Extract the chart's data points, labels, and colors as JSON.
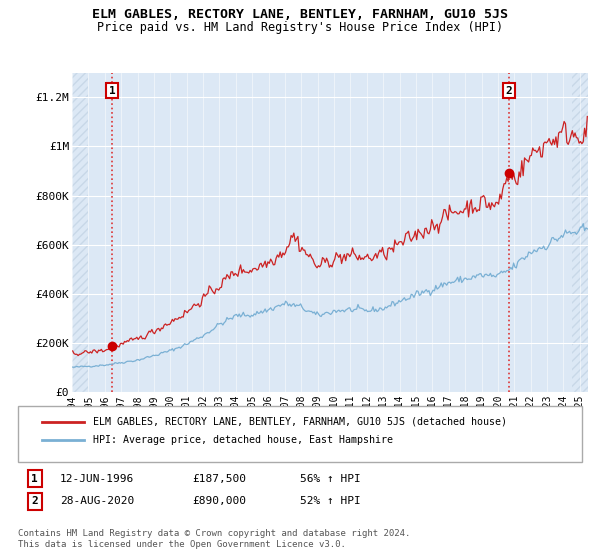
{
  "title": "ELM GABLES, RECTORY LANE, BENTLEY, FARNHAM, GU10 5JS",
  "subtitle": "Price paid vs. HM Land Registry's House Price Index (HPI)",
  "ylim": [
    0,
    1300000
  ],
  "yticks": [
    0,
    200000,
    400000,
    600000,
    800000,
    1000000,
    1200000
  ],
  "ytick_labels": [
    "£0",
    "£200K",
    "£400K",
    "£600K",
    "£800K",
    "£1M",
    "£1.2M"
  ],
  "background_color": "#ffffff",
  "plot_bg_color": "#dce8f5",
  "grid_color": "#ffffff",
  "hatch_color": "#c8d8e8",
  "sale1_date": 1996.46,
  "sale1_price": 187500,
  "sale1_label": "1",
  "sale2_date": 2020.66,
  "sale2_price": 890000,
  "sale2_label": "2",
  "vline_color": "#dd3333",
  "marker_color": "#cc0000",
  "hpi_line_color": "#7ab0d4",
  "price_line_color": "#cc2222",
  "legend_label1": "ELM GABLES, RECTORY LANE, BENTLEY, FARNHAM, GU10 5JS (detached house)",
  "legend_label2": "HPI: Average price, detached house, East Hampshire",
  "ann1_box": "1",
  "ann1_date": "12-JUN-1996",
  "ann1_price": "£187,500",
  "ann1_hpi": "56% ↑ HPI",
  "ann2_box": "2",
  "ann2_date": "28-AUG-2020",
  "ann2_price": "£890,000",
  "ann2_hpi": "52% ↑ HPI",
  "footer": "Contains HM Land Registry data © Crown copyright and database right 2024.\nThis data is licensed under the Open Government Licence v3.0.",
  "xmin": 1994.0,
  "xmax": 2025.5,
  "xticks": [
    1994,
    1995,
    1996,
    1997,
    1998,
    1999,
    2000,
    2001,
    2002,
    2003,
    2004,
    2005,
    2006,
    2007,
    2008,
    2009,
    2010,
    2011,
    2012,
    2013,
    2014,
    2015,
    2016,
    2017,
    2018,
    2019,
    2020,
    2021,
    2022,
    2023,
    2024,
    2025
  ]
}
